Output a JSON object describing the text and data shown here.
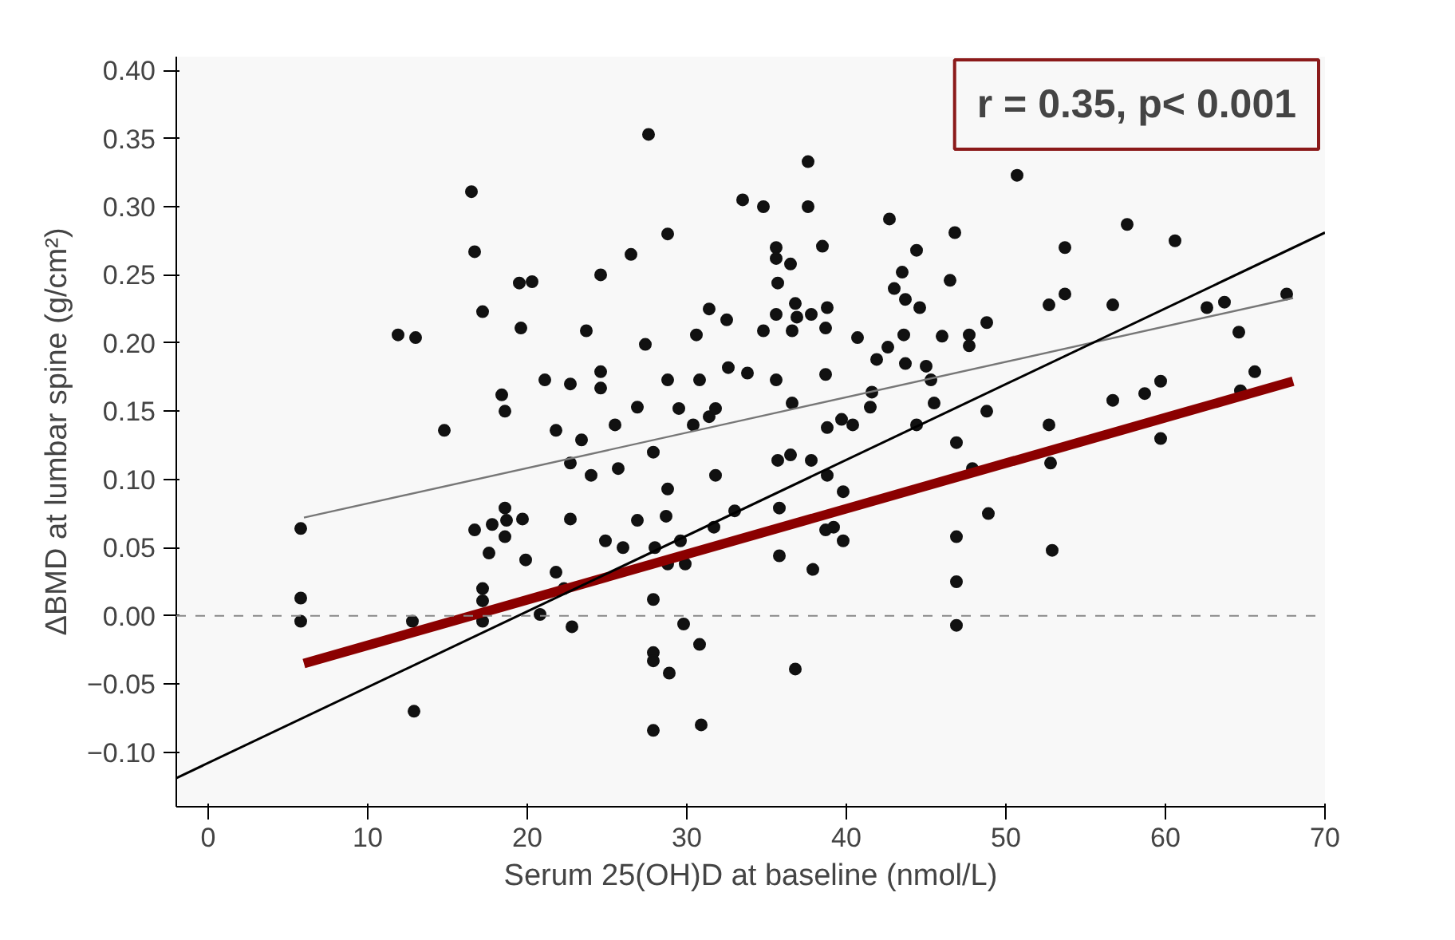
{
  "chart_data": {
    "type": "scatter",
    "xlabel": "Serum 25(OH)D at baseline (nmol/L)",
    "ylabel": "ΔBMD at lumbar spine (g/cm²)",
    "annotations": [
      "r = 0.35, p< 0.001"
    ],
    "xlim": [
      -2,
      70
    ],
    "ylim": [
      -0.14,
      0.41
    ],
    "xticks": [
      0,
      10,
      20,
      30,
      40,
      50,
      60,
      70
    ],
    "yticks": [
      {
        "value": -0.1,
        "label": "−0.10"
      },
      {
        "value": -0.05,
        "label": "−0.05"
      },
      {
        "value": 0,
        "label": "0.00"
      },
      {
        "value": 0.05,
        "label": "0.05"
      },
      {
        "value": 0.1,
        "label": "0.10"
      },
      {
        "value": 0.15,
        "label": "0.15"
      },
      {
        "value": 0.2,
        "label": "0.20"
      },
      {
        "value": 0.25,
        "label": "0.25"
      },
      {
        "value": 0.3,
        "label": "0.30"
      },
      {
        "value": 0.35,
        "label": "0.35"
      },
      {
        "value": 0.4,
        "label": "0.40"
      }
    ],
    "grid": false,
    "ref_lines": [
      {
        "axis": "y",
        "value": 0,
        "color": "#888888",
        "line_style": "dashed"
      }
    ],
    "series": [
      {
        "marker": "circle",
        "color": "#111111",
        "x": [
          5.8,
          5.8,
          5.8,
          12.9,
          11.9,
          13,
          12.8,
          14.8,
          16.5,
          16.7,
          16.7,
          17.2,
          17.2,
          17.2,
          17.2,
          17.6,
          17.8,
          18.4,
          18.6,
          18.6,
          18.6,
          18.7,
          19.5,
          19.6,
          19.7,
          19.9,
          20.3,
          20.8,
          21.1,
          21.8,
          21.8,
          22.3,
          22.7,
          22.7,
          22.7,
          22.8,
          23.4,
          23.7,
          24,
          24.6,
          24.6,
          24.6,
          24.9,
          25.5,
          25.7,
          26,
          26.5,
          26.9,
          26.9,
          27.4,
          27.9,
          27.6,
          28,
          27.9,
          27.9,
          27.9,
          27.9,
          28.8,
          28.8,
          28.8,
          28.7,
          28.8,
          28.9,
          29.6,
          29.5,
          29.8,
          29.9,
          30.4,
          30.6,
          30.8,
          30.8,
          30.9,
          31.4,
          31.4,
          31.7,
          31.8,
          31.8,
          32.5,
          32.6,
          33,
          33.5,
          33.8,
          34.8,
          34.8,
          35.6,
          35.6,
          35.7,
          35.6,
          35.6,
          35.7,
          35.8,
          35.8,
          36.5,
          36.6,
          36.6,
          36.5,
          36.8,
          36.9,
          36.8,
          37.6,
          37.6,
          37.8,
          37.8,
          37.9,
          38.5,
          38.7,
          38.8,
          38.7,
          38.8,
          38.8,
          38.7,
          39.2,
          39.7,
          39.8,
          39.8,
          40.4,
          40.7,
          41.5,
          41.6,
          41.9,
          42.6,
          42.7,
          43,
          43.5,
          43.6,
          43.7,
          43.7,
          44.4,
          44.6,
          44.4,
          45,
          45.3,
          45.5,
          46,
          46.5,
          50.7,
          46.8,
          53.7,
          57.6,
          60.6,
          53.7,
          52.7,
          56.7,
          48.8,
          47.7,
          47.7,
          62.6,
          63.7,
          67.6,
          64.6,
          65.6,
          64.7,
          59.7,
          58.7,
          56.7,
          48.8,
          52.7,
          46.9,
          52.8,
          59.7,
          47.9,
          48.9,
          46.9,
          52.9,
          46.9,
          46.9
        ],
        "values": [
          0.064,
          0.013,
          -0.004,
          -0.07,
          0.206,
          0.204,
          -0.004,
          0.136,
          0.311,
          0.063,
          0.267,
          0.223,
          0.02,
          0.011,
          -0.004,
          0.046,
          0.067,
          0.162,
          0.15,
          0.079,
          0.058,
          0.07,
          0.244,
          0.211,
          0.071,
          0.041,
          0.245,
          0.001,
          0.173,
          0.136,
          0.032,
          0.02,
          0.17,
          0.071,
          0.112,
          -0.008,
          0.129,
          0.209,
          0.103,
          0.25,
          0.179,
          0.167,
          0.055,
          0.14,
          0.108,
          0.05,
          0.265,
          0.153,
          0.07,
          0.199,
          0.12,
          0.353,
          0.05,
          0.012,
          -0.027,
          -0.033,
          -0.084,
          0.28,
          0.173,
          0.093,
          0.073,
          0.038,
          -0.042,
          0.055,
          0.152,
          -0.006,
          0.038,
          0.14,
          0.206,
          0.173,
          -0.021,
          -0.08,
          0.225,
          0.146,
          0.065,
          0.103,
          0.152,
          0.217,
          0.182,
          0.077,
          0.305,
          0.178,
          0.3,
          0.209,
          0.27,
          0.262,
          0.244,
          0.173,
          0.221,
          0.114,
          0.079,
          0.044,
          0.258,
          0.209,
          0.156,
          0.118,
          -0.039,
          0.219,
          0.229,
          0.333,
          0.3,
          0.221,
          0.114,
          0.034,
          0.271,
          0.211,
          0.226,
          0.177,
          0.138,
          0.103,
          0.063,
          0.065,
          0.144,
          0.055,
          0.091,
          0.14,
          0.204,
          0.153,
          0.164,
          0.188,
          0.197,
          0.291,
          0.24,
          0.252,
          0.206,
          0.185,
          0.232,
          0.268,
          0.226,
          0.14,
          0.183,
          0.173,
          0.156,
          0.205,
          0.246,
          0.323,
          0.281,
          0.27,
          0.287,
          0.275,
          0.236,
          0.228,
          0.228,
          0.215,
          0.206,
          0.198,
          0.226,
          0.23,
          0.236,
          0.208,
          0.179,
          0.165,
          0.172,
          0.163,
          0.158,
          0.15,
          0.14,
          0.127,
          0.112,
          0.13,
          0.108,
          0.075,
          0.058,
          0.048,
          0.025,
          -0.007
        ]
      },
      {
        "type": "line",
        "marker": "none",
        "color": "#777777",
        "x": [
          6,
          68
        ],
        "values": [
          0.072,
          0.233
        ]
      },
      {
        "type": "line",
        "marker": "none",
        "color": "#8b0000",
        "x": [
          6,
          68
        ],
        "values": [
          -0.035,
          0.172
        ]
      },
      {
        "type": "line",
        "marker": "none",
        "color": "#000000",
        "x": [
          -2,
          70
        ],
        "values": [
          -0.119,
          0.281
        ]
      }
    ]
  }
}
